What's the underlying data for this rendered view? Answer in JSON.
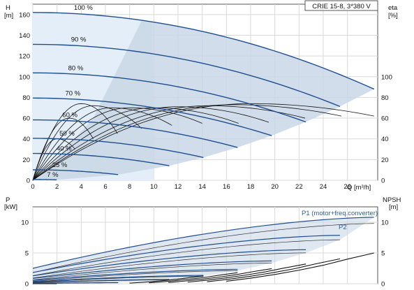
{
  "chart_data": [
    {
      "id": "head",
      "type": "line",
      "title": "CRIE 15-8, 3*380 V",
      "xlabel": "Q [m³/h]",
      "ylabel_left_symbol": "H",
      "ylabel_left_unit": "[m]",
      "ylabel_right_symbol": "eta",
      "ylabel_right_unit": "[%]",
      "xlim": [
        0,
        28.5
      ],
      "ylim_left": [
        0,
        170
      ],
      "ylim_right": [
        0,
        170
      ],
      "x_ticks": [
        0,
        2,
        4,
        6,
        8,
        10,
        12,
        14,
        16,
        18,
        20,
        22,
        24,
        26
      ],
      "y_ticks_left": [
        0,
        20,
        40,
        60,
        80,
        100,
        120,
        140,
        160
      ],
      "y_ticks_right": [
        0,
        20,
        40,
        60,
        80,
        100
      ],
      "grid": true,
      "colors": {
        "head_curve": "#1f4f8f",
        "region_fill": "#c9d7e6",
        "region_light": "#e3eef8",
        "efficiency_curve": "#111111"
      },
      "speed_labels": [
        "100 %",
        "90 %",
        "80 %",
        "70 %",
        "60 %",
        "50 %",
        "40 %",
        "25 %",
        "7 %"
      ],
      "speed_fractions": [
        1.0,
        0.9,
        0.8,
        0.7,
        0.6,
        0.5,
        0.4,
        0.25,
        0.07
      ],
      "head_curve_model": {
        "h0_at_100": 162,
        "qmax_at_100": 28.2,
        "h_end_at_100": 88
      },
      "efficiency_curves": [
        {
          "peak_q": 18.0,
          "peak": 74,
          "end_q": 28.2,
          "end": 62
        },
        {
          "peak_q": 16.5,
          "peak": 73,
          "end_q": 25.5,
          "end": 62
        },
        {
          "peak_q": 14.5,
          "peak": 72,
          "end_q": 22.5,
          "end": 60
        },
        {
          "peak_q": 12.0,
          "peak": 71,
          "end_q": 19.5,
          "end": 56
        },
        {
          "peak_q": 10.0,
          "peak": 70,
          "end_q": 17.0,
          "end": 55
        },
        {
          "peak_q": 8.0,
          "peak": 70,
          "end_q": 14.0,
          "end": 55
        },
        {
          "peak_q": 6.5,
          "peak": 70,
          "end_q": 11.5,
          "end": 53
        },
        {
          "peak_q": 5.0,
          "peak": 72,
          "end_q": 9.0,
          "end": 50
        },
        {
          "peak_q": 4.0,
          "peak": 74,
          "end_q": 7.0,
          "end": 45
        },
        {
          "peak_q": 3.0,
          "peak": 60,
          "end_q": 5.0,
          "end": 40
        },
        {
          "peak_q": 2.0,
          "peak": 40,
          "end_q": 3.5,
          "end": 30
        }
      ]
    },
    {
      "id": "power",
      "type": "line",
      "xlabel": "",
      "ylabel_left_symbol": "P",
      "ylabel_left_unit": "[kW]",
      "ylabel_right_symbol": "NPSH",
      "ylabel_right_unit": "[m]",
      "xlim": [
        0,
        28.5
      ],
      "ylim_left": [
        0,
        12.5
      ],
      "ylim_right": [
        0,
        12.5
      ],
      "y_ticks_left": [
        0,
        5,
        10
      ],
      "y_ticks_right": [
        0,
        5,
        10
      ],
      "grid": true,
      "series_labels": {
        "p1": "P1 (motor+freq.converter)",
        "p2": "P2"
      },
      "p1_curve_100": {
        "p0": 2.5,
        "p_end": 10.8,
        "q_end": 28.2
      },
      "p2_curve_100": {
        "p0": 1.8,
        "p_end": 9.8,
        "q_end": 28.2
      },
      "npsh_curve": {
        "q": [
          16,
          18,
          20,
          22,
          24,
          26,
          28.2
        ],
        "v": [
          0.4,
          0.9,
          1.5,
          2.2,
          3.0,
          4.0,
          5.0
        ]
      }
    }
  ]
}
